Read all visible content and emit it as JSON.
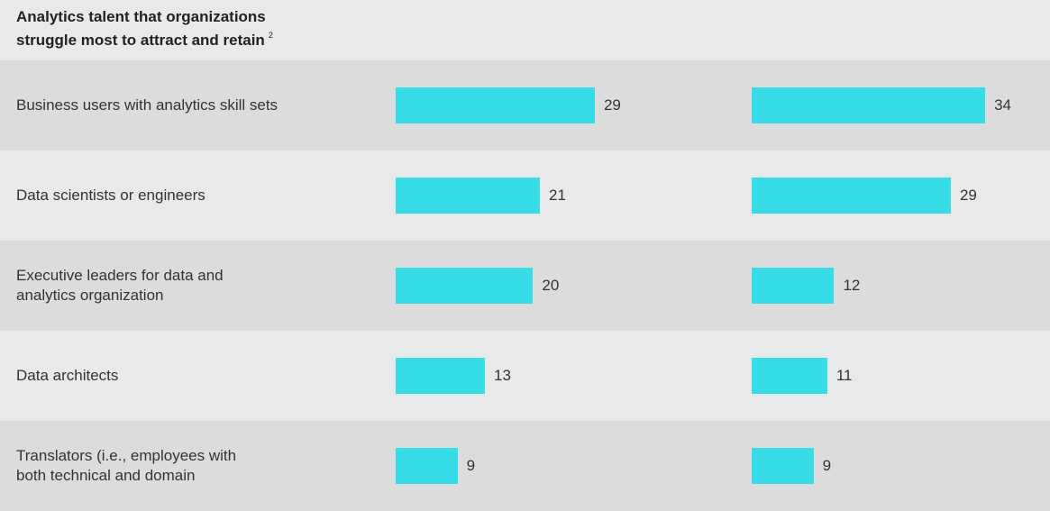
{
  "chart_data": {
    "type": "bar",
    "title": "Analytics talent that organizations\nstruggle most to attract and retain",
    "title_footnote": "2",
    "categories": [
      "Business users with analytics skill sets",
      "Data scientists or engineers",
      "Executive leaders for data and\nanalytics organization",
      "Data architects",
      "Translators (i.e., employees with\nboth technical and domain"
    ],
    "series": [
      {
        "color": "#36dce6",
        "values": [
          29,
          21,
          20,
          13,
          9
        ]
      },
      {
        "color": "#36dce6",
        "values": [
          34,
          29,
          12,
          11,
          9
        ]
      }
    ]
  }
}
